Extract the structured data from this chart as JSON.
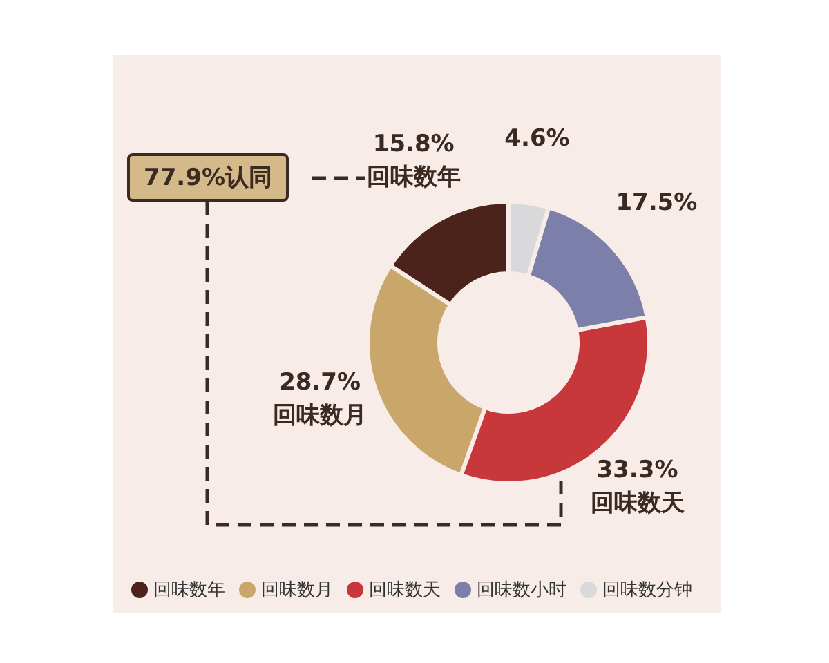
{
  "chart_data": {
    "type": "donut",
    "categories": [
      "回味数年",
      "回味数月",
      "回味数天",
      "回味数小时",
      "回味数分钟"
    ],
    "values": [
      15.8,
      28.7,
      33.3,
      17.5,
      4.6
    ],
    "colors": [
      "#4b231a",
      "#c9a76a",
      "#c8383b",
      "#7b7fa9",
      "#d9d9dc"
    ],
    "value_labels": [
      "15.8%\n回味数年",
      "28.7%\n回味数月",
      "33.3%\n回味数天",
      "17.5%",
      "4.6%"
    ],
    "annotations": [
      "77.9%认同"
    ],
    "legend": "bottom"
  }
}
